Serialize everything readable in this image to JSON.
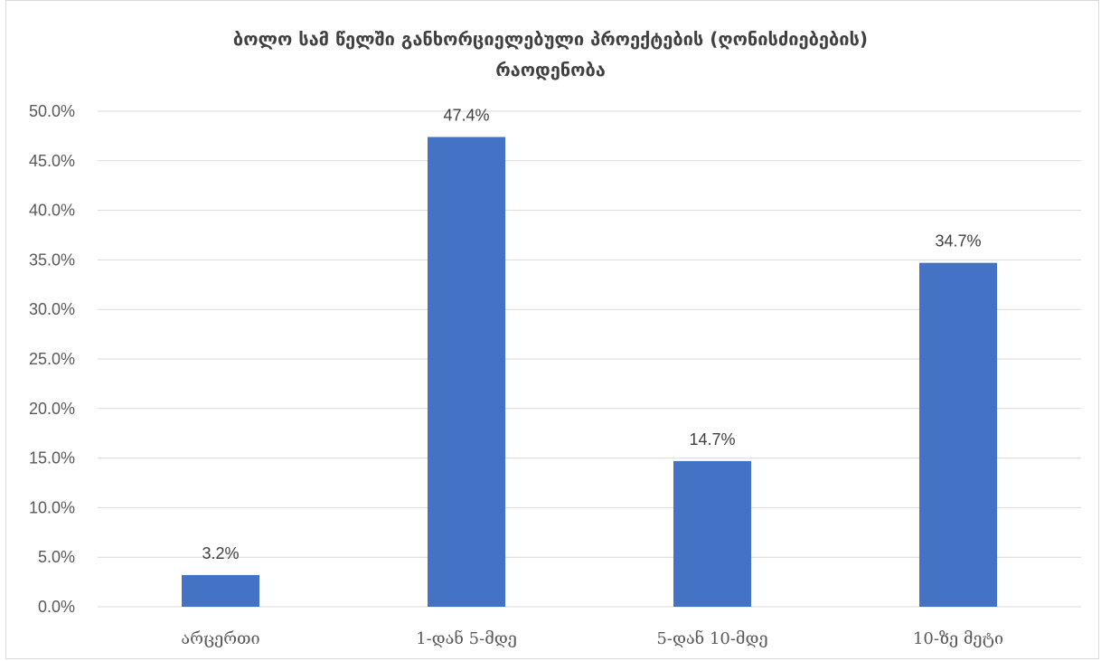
{
  "chart_data": {
    "type": "bar",
    "title_lines": [
      "ბოლო სამ წელში განხორციელებული პროექტების (ღონისძიებების)",
      "რაოდენობა"
    ],
    "categories": [
      "არცერთი",
      "1-დან 5-მდე",
      "5-დან 10-მდე",
      "10-ზე მეტი"
    ],
    "values": [
      3.2,
      47.4,
      14.7,
      34.7
    ],
    "data_labels": [
      "3.2%",
      "47.4%",
      "14.7%",
      "34.7%"
    ],
    "y_ticks": [
      "0.0%",
      "5.0%",
      "10.0%",
      "15.0%",
      "20.0%",
      "25.0%",
      "30.0%",
      "35.0%",
      "40.0%",
      "45.0%",
      "50.0%"
    ],
    "ylim": [
      0,
      50
    ],
    "grid": true,
    "bar_color": "#4472C4",
    "grid_color": "#d9d9d9"
  }
}
